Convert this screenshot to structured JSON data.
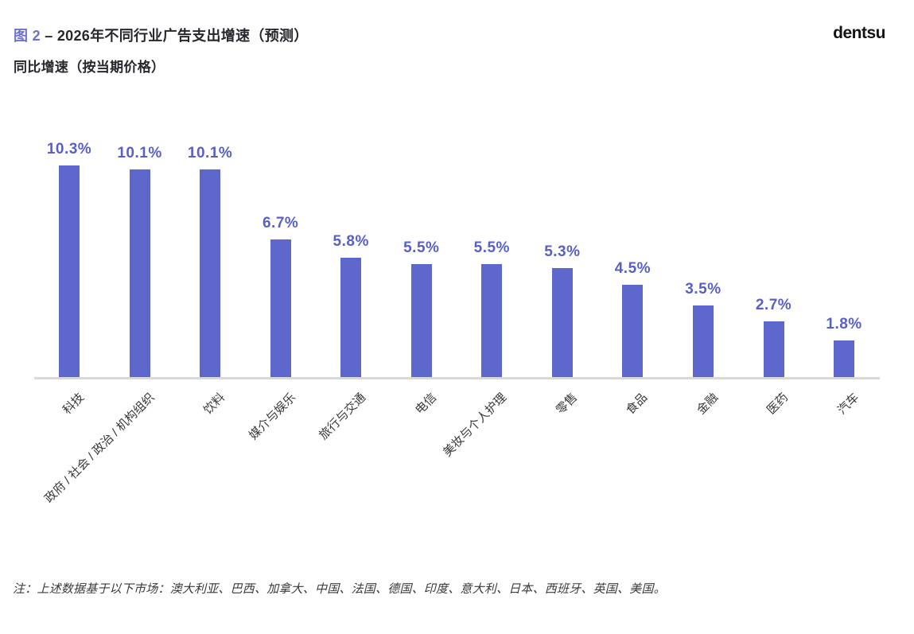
{
  "header": {
    "figure_label": "图 2",
    "title_rest": "– 2026年不同行业广告支出增速（预测）",
    "subtitle": "同比增速（按当期价格）",
    "brand": "dentsu"
  },
  "chart_data": {
    "type": "bar",
    "title": "图 2 – 2026年不同行业广告支出增速（预测）",
    "subtitle": "同比增速（按当期价格）",
    "categories": [
      "科技",
      "政府 / 社会 / 政治 / 机构组织",
      "饮料",
      "媒介与娱乐",
      "旅行与交通",
      "电信",
      "美妆与个人护理",
      "零售",
      "食品",
      "金融",
      "医药",
      "汽车"
    ],
    "values": [
      10.3,
      10.1,
      10.1,
      6.7,
      5.8,
      5.5,
      5.5,
      5.3,
      4.5,
      3.5,
      2.7,
      1.8
    ],
    "value_labels": [
      "10.3%",
      "10.1%",
      "10.1%",
      "6.7%",
      "5.8%",
      "5.5%",
      "5.5%",
      "5.3%",
      "4.5%",
      "3.5%",
      "2.7%",
      "1.8%"
    ],
    "unit": "%",
    "ylim": [
      0,
      11
    ],
    "grid": false,
    "legend": false,
    "bar_color": "#5e67cb",
    "value_label_color": "#575fc8",
    "axis_line_color": "#d9d9d9"
  },
  "footnote": "注：上述数据基于以下市场：澳大利亚、巴西、加拿大、中国、法国、德国、印度、意大利、日本、西班牙、英国、美国。"
}
